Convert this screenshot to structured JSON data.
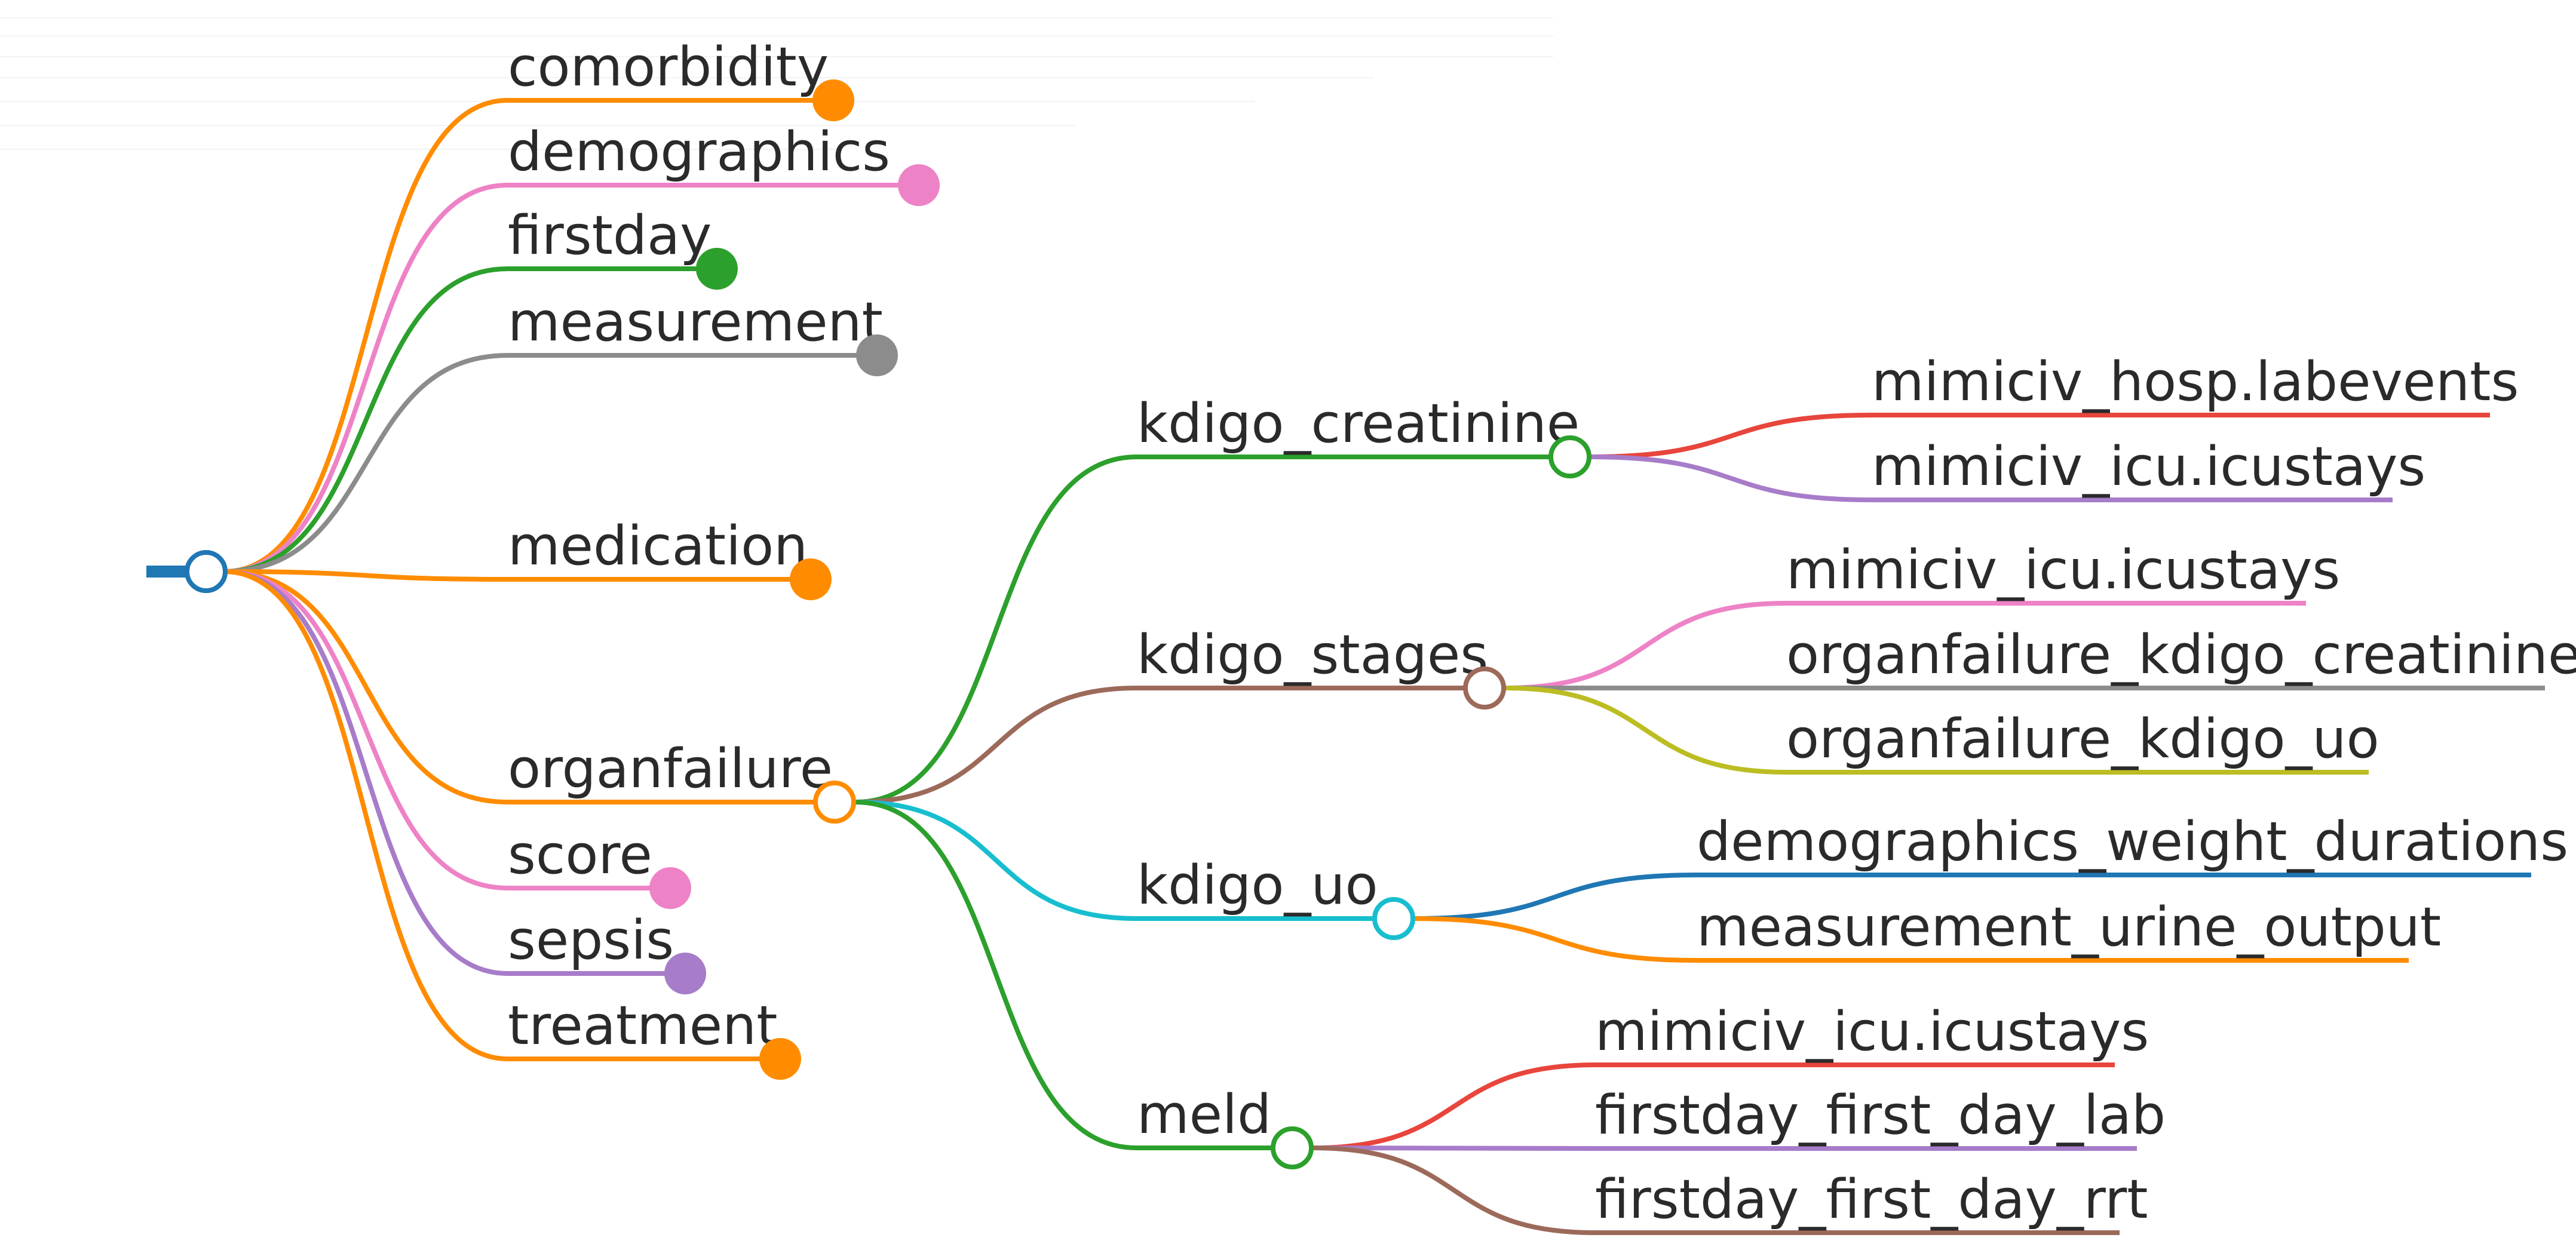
{
  "root": {
    "children": [
      {
        "label": "comorbidity",
        "color": "#FF8C00",
        "collapsed": true
      },
      {
        "label": "demographics",
        "color": "#EE82C6",
        "collapsed": true
      },
      {
        "label": "firstday",
        "color": "#2CA02C",
        "collapsed": true
      },
      {
        "label": "measurement",
        "color": "#8C8C8C",
        "collapsed": true
      },
      {
        "label": "medication",
        "color": "#FF8C00",
        "collapsed": true
      },
      {
        "label": "organfailure",
        "color": "#FF8C00",
        "collapsed": false,
        "children": [
          {
            "label": "kdigo_creatinine",
            "color": "#2CA02C",
            "collapsed": false,
            "children": [
              {
                "label": "mimiciv_hosp.labevents",
                "color": "#E8453C"
              },
              {
                "label": "mimiciv_icu.icustays",
                "color": "#A77CC9"
              }
            ]
          },
          {
            "label": "kdigo_stages",
            "color": "#9C6A5A",
            "collapsed": false,
            "children": [
              {
                "label": "mimiciv_icu.icustays",
                "color": "#EE82C6"
              },
              {
                "label": "organfailure_kdigo_creatinine",
                "color": "#8C8C8C"
              },
              {
                "label": "organfailure_kdigo_uo",
                "color": "#BCBD22"
              }
            ]
          },
          {
            "label": "kdigo_uo",
            "color": "#17BECF",
            "collapsed": false,
            "children": [
              {
                "label": "demographics_weight_durations",
                "color": "#1F77B4"
              },
              {
                "label": "measurement_urine_output",
                "color": "#FF8C00"
              }
            ]
          },
          {
            "label": "meld",
            "color": "#2CA02C",
            "collapsed": false,
            "children": [
              {
                "label": "mimiciv_icu.icustays",
                "color": "#E8453C"
              },
              {
                "label": "firstday_first_day_lab",
                "color": "#A77CC9"
              },
              {
                "label": "firstday_first_day_rrt",
                "color": "#9C6A5A"
              }
            ]
          }
        ]
      },
      {
        "label": "score",
        "color": "#EE82C6",
        "collapsed": true
      },
      {
        "label": "sepsis",
        "color": "#A77CC9",
        "collapsed": true
      },
      {
        "label": "treatment",
        "color": "#FF8C00",
        "collapsed": true
      }
    ]
  },
  "root_color": "#1F77B4"
}
